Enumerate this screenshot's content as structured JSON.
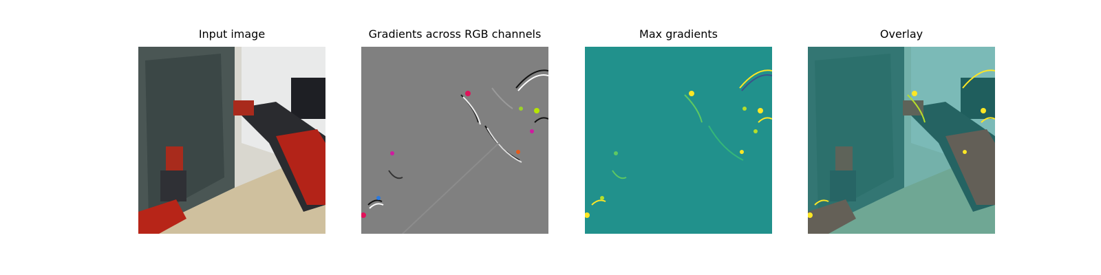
{
  "figure": {
    "panels": [
      {
        "title": "Input image"
      },
      {
        "title": "Gradients across RGB channels"
      },
      {
        "title": "Max gradients"
      },
      {
        "title": "Overlay"
      }
    ]
  }
}
